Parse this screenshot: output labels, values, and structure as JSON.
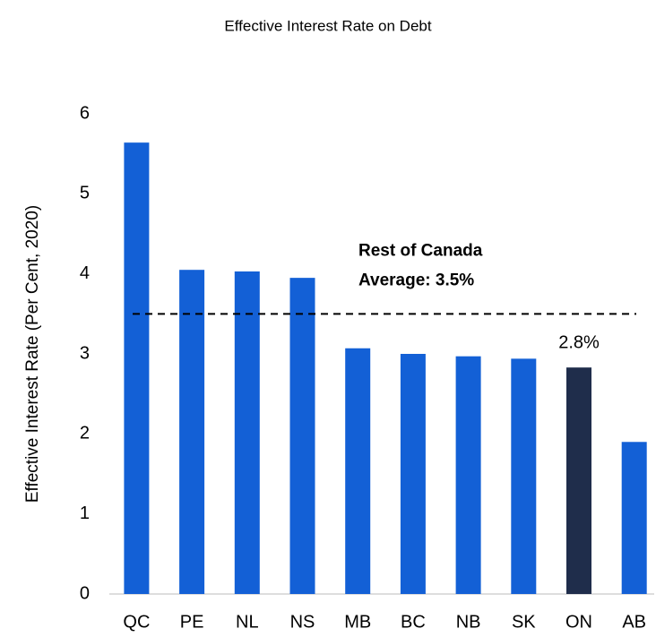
{
  "chart_data": {
    "type": "bar",
    "title": "Effective Interest Rate on Debt",
    "y_label": "Effective Interest Rate (Per Cent, 2020)",
    "categories": [
      "QC",
      "PE",
      "NL",
      "NS",
      "MB",
      "BC",
      "NB",
      "SK",
      "ON",
      "AB"
    ],
    "values": [
      5.64,
      4.05,
      4.03,
      3.95,
      3.07,
      3.0,
      2.97,
      2.94,
      2.83,
      1.9
    ],
    "value_labels": [
      null,
      null,
      null,
      null,
      null,
      null,
      null,
      null,
      "2.8%",
      null
    ],
    "colors": [
      "#1360d6",
      "#1360d6",
      "#1360d6",
      "#1360d6",
      "#1360d6",
      "#1360d6",
      "#1360d6",
      "#1360d6",
      "#1f2d4b",
      "#1360d6"
    ],
    "reference_line": {
      "value": 3.5,
      "label": [
        "Rest of Canada",
        "Average: 3.5%"
      ]
    },
    "ylim": [
      0,
      6
    ],
    "yticks": [
      0,
      1,
      2,
      3,
      4,
      5,
      6
    ],
    "grid": false
  }
}
